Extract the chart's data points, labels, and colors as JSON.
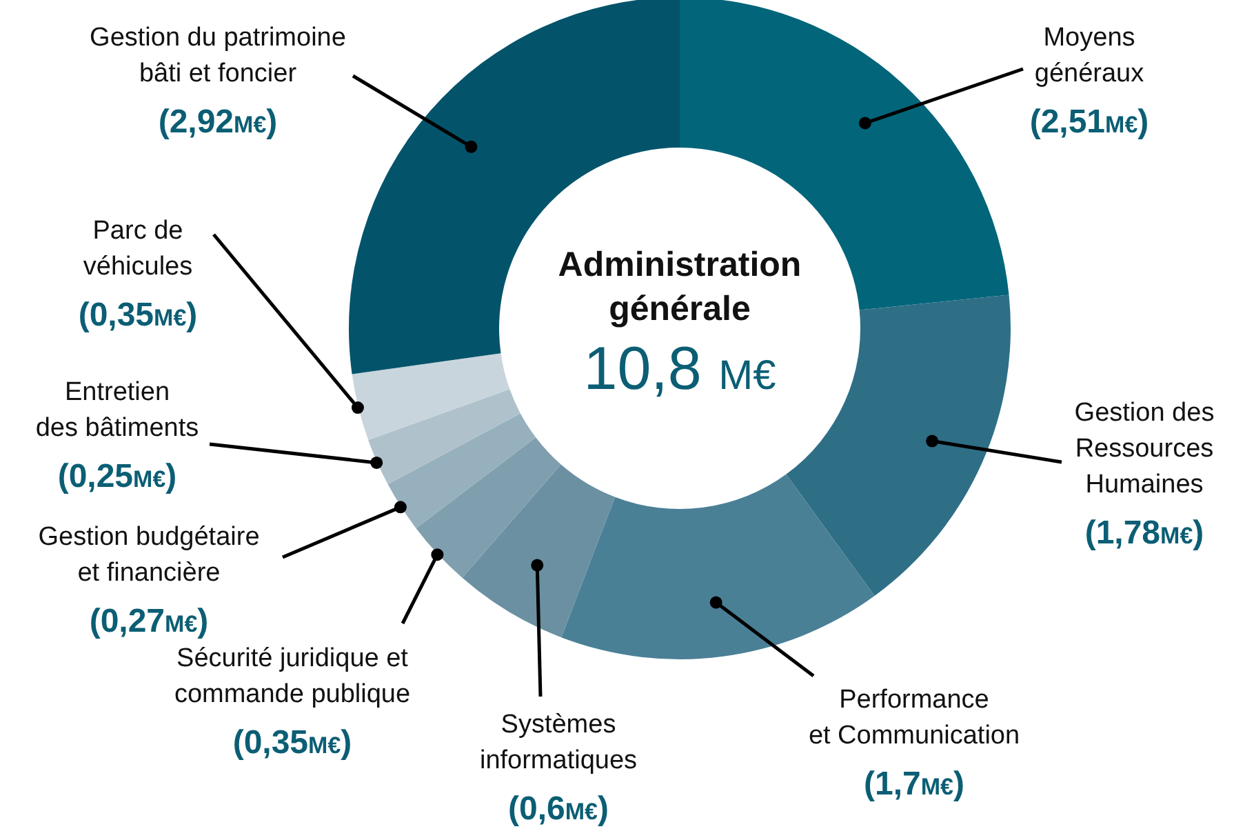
{
  "chart_data": {
    "type": "donut",
    "title": "Administration générale",
    "annotations": [
      "10,8 M€"
    ],
    "categories": [
      "Moyens\ngénéraux",
      "Gestion des\nRessources\nHumaines",
      "Performance\net Communication",
      "Systèmes\ninformatiques",
      "Sécurité juridique et\ncommande publique",
      "Gestion budgétaire\net financière",
      "Entretien\ndes bâtiments",
      "Parc de\nvéhicules",
      "Gestion du patrimoine\nbâti et foncier"
    ],
    "values": [
      2.51,
      1.78,
      1.7,
      0.6,
      0.35,
      0.27,
      0.25,
      0.35,
      2.92
    ],
    "value_labels": [
      "(2,51M€)",
      "(1,78M€)",
      "(1,7M€)",
      "(0,6M€)",
      "(0,35M€)",
      "(0,27M€)",
      "(0,25M€)",
      "(0,35M€)",
      "(2,92M€)"
    ],
    "colors": [
      "#02657a",
      "#2e6f86",
      "#4a8096",
      "#6a90a2",
      "#809fae",
      "#97b0bd",
      "#afc2cc",
      "#c9d5dc",
      "#03546b"
    ]
  }
}
